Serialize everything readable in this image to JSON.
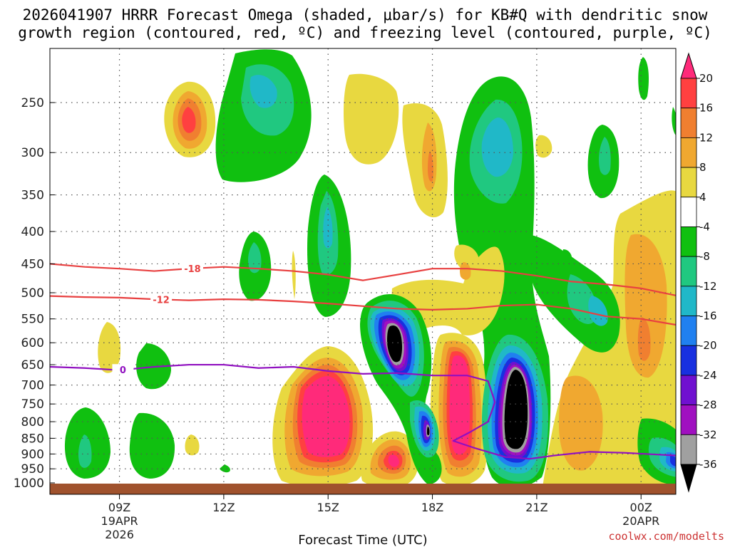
{
  "title_line1": "2026041907 HRRR Forecast Omega (shaded, μbar/s) for KB#Q with dendritic snow",
  "title_line2": "growth region (contoured, red, ºC) and freezing level (contoured, purple, ºC)",
  "xlabel": "Forecast Time (UTC)",
  "credit": "coolwx.com/modelts",
  "chart_data": {
    "type": "heatmap",
    "y_levels": [
      "250",
      "300",
      "350",
      "400",
      "450",
      "500",
      "550",
      "600",
      "650",
      "700",
      "750",
      "800",
      "850",
      "900",
      "950",
      "1000"
    ],
    "x_ticks": [
      {
        "hour": 9,
        "label": "09Z",
        "sub1": "19APR",
        "sub2": "2026"
      },
      {
        "hour": 12,
        "label": "12Z",
        "sub1": "",
        "sub2": ""
      },
      {
        "hour": 15,
        "label": "15Z",
        "sub1": "",
        "sub2": ""
      },
      {
        "hour": 18,
        "label": "18Z",
        "sub1": "",
        "sub2": ""
      },
      {
        "hour": 21,
        "label": "21Z",
        "sub1": "",
        "sub2": ""
      },
      {
        "hour": 24,
        "label": "00Z",
        "sub1": "20APR",
        "sub2": ""
      }
    ],
    "x_range_hours": [
      7,
      25
    ],
    "y_range_hPa": [
      200,
      1020
    ],
    "colorbar": {
      "labels": [
        "20",
        "16",
        "12",
        "8",
        "4",
        "-4",
        "-8",
        "-12",
        "-16",
        "-20",
        "-24",
        "-28",
        "-32",
        "-36"
      ],
      "colors": [
        "#ff2a7a",
        "#ff4040",
        "#f07f30",
        "#f0a830",
        "#e8d840",
        "#ffffff",
        "#10c010",
        "#20c880",
        "#20b8c8",
        "#2080f0",
        "#1830e0",
        "#7010d0",
        "#a010c0",
        "#a0a0a0",
        "#000000"
      ]
    },
    "features": [
      {
        "name": "ascent-core-1",
        "value": -36,
        "center_hour": 17.0,
        "center_hPa": 620,
        "note": "black core"
      },
      {
        "name": "ascent-core-2",
        "value": -36,
        "center_hour": 20.0,
        "center_hPa": 780,
        "note": "black core"
      },
      {
        "name": "ascent-core-3",
        "value": -36,
        "center_hour": 18.0,
        "center_hPa": 835,
        "note": "small black core"
      },
      {
        "name": "descent-core-1",
        "value": 20,
        "center_hour": 15.0,
        "center_hPa": 790,
        "note": "magenta"
      },
      {
        "name": "descent-core-2",
        "value": 20,
        "center_hour": 18.9,
        "center_hPa": 790,
        "note": "magenta"
      },
      {
        "name": "descent-core-3",
        "value": 16,
        "center_hour": 11.0,
        "center_hPa": 270,
        "note": "red core"
      }
    ],
    "contours": [
      {
        "label": "-18",
        "color": "#e84040",
        "label_hour": 11.1,
        "points": [
          [
            7,
            450
          ],
          [
            8,
            455
          ],
          [
            9,
            458
          ],
          [
            10,
            462
          ],
          [
            11,
            458
          ],
          [
            12,
            455
          ],
          [
            13,
            458
          ],
          [
            14,
            462
          ],
          [
            15,
            468
          ],
          [
            16,
            478
          ],
          [
            17,
            468
          ],
          [
            18,
            458
          ],
          [
            19,
            458
          ],
          [
            20,
            462
          ],
          [
            21,
            470
          ],
          [
            22,
            480
          ],
          [
            23,
            485
          ],
          [
            24,
            492
          ],
          [
            25,
            505
          ]
        ]
      },
      {
        "label": "-12",
        "color": "#e84040",
        "label_hour": 10.2,
        "points": [
          [
            7,
            506
          ],
          [
            8,
            508
          ],
          [
            9,
            509
          ],
          [
            10,
            512
          ],
          [
            11,
            514
          ],
          [
            12,
            512
          ],
          [
            13,
            513
          ],
          [
            14,
            516
          ],
          [
            15,
            520
          ],
          [
            16,
            525
          ],
          [
            17,
            530
          ],
          [
            18,
            532
          ],
          [
            19,
            530
          ],
          [
            20,
            524
          ],
          [
            21,
            522
          ],
          [
            22,
            530
          ],
          [
            23,
            545
          ],
          [
            24,
            550
          ],
          [
            25,
            562
          ]
        ]
      },
      {
        "label": "0",
        "color": "#9010c0",
        "label_hour": 9.1,
        "points": [
          [
            7,
            655
          ],
          [
            8,
            658
          ],
          [
            9,
            663
          ],
          [
            10,
            655
          ],
          [
            11,
            650
          ],
          [
            12,
            650
          ],
          [
            13,
            658
          ],
          [
            14,
            655
          ],
          [
            15,
            665
          ],
          [
            16,
            672
          ],
          [
            17,
            670
          ],
          [
            18,
            676
          ],
          [
            19,
            676
          ],
          [
            19.6,
            690
          ],
          [
            19.8,
            745
          ],
          [
            19.6,
            800
          ],
          [
            19.1,
            830
          ],
          [
            18.6,
            858
          ],
          [
            19.2,
            880
          ],
          [
            20.1,
            910
          ],
          [
            20.8,
            916
          ],
          [
            21.5,
            905
          ],
          [
            22.5,
            893
          ],
          [
            23.5,
            896
          ],
          [
            25,
            905
          ]
        ]
      }
    ]
  }
}
